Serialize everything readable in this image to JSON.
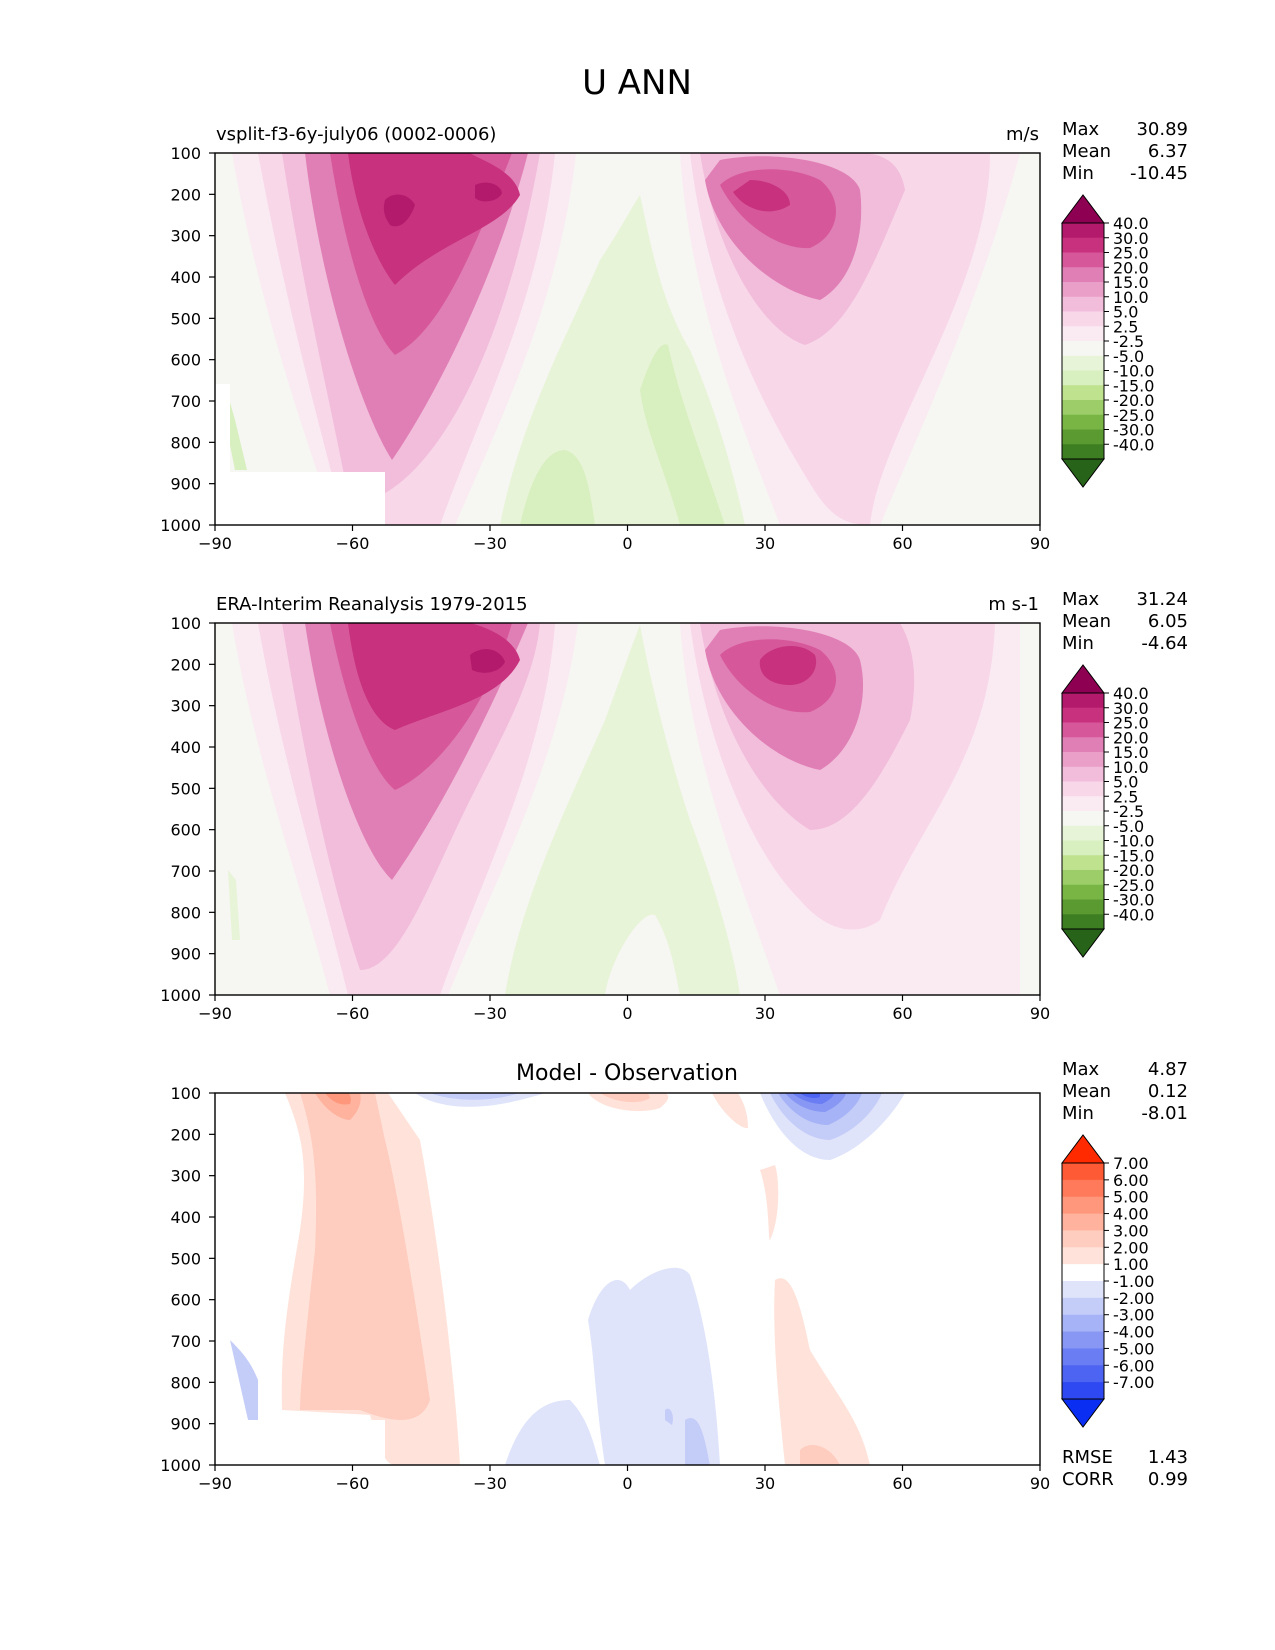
{
  "figure": {
    "title": "U ANN"
  },
  "chart_data": [
    {
      "type": "heatmap",
      "title": "vsplit-f3-6y-july06 (0002-0006)",
      "units": "m/s",
      "stats": {
        "max_label": "Max",
        "max": "30.89",
        "mean_label": "Mean",
        "mean": "6.37",
        "min_label": "Min",
        "min": "-10.45"
      },
      "x_ticks": [
        "−90",
        "−60",
        "−30",
        "0",
        "30",
        "60",
        "90"
      ],
      "xlim": [
        -90,
        90
      ],
      "y_ticks": [
        "100",
        "200",
        "300",
        "400",
        "500",
        "600",
        "700",
        "800",
        "900",
        "1000"
      ],
      "ylim": [
        1000,
        100
      ],
      "colorbar_levels": [
        "40.0",
        "30.0",
        "25.0",
        "20.0",
        "15.0",
        "10.0",
        "5.0",
        "2.5",
        "-2.5",
        "-5.0",
        "-10.0",
        "-15.0",
        "-20.0",
        "-25.0",
        "-30.0",
        "-40.0"
      ],
      "colorbar_colors": [
        "#8e0152",
        "#b41a6c",
        "#c8317d",
        "#d6589b",
        "#e07fb5",
        "#ea9fc8",
        "#f2bddb",
        "#f8d7e9",
        "#faeaf2",
        "#f6f6f2",
        "#e8f4d8",
        "#d8efc0",
        "#bfe28e",
        "#9ccd68",
        "#79b545",
        "#5b9a31",
        "#3e7e23",
        "#276419"
      ]
    },
    {
      "type": "heatmap",
      "title": "ERA-Interim Reanalysis 1979-2015",
      "units": "m s-1",
      "stats": {
        "max_label": "Max",
        "max": "31.24",
        "mean_label": "Mean",
        "mean": "6.05",
        "min_label": "Min",
        "min": "-4.64"
      },
      "x_ticks": [
        "−90",
        "−60",
        "−30",
        "0",
        "30",
        "60",
        "90"
      ],
      "xlim": [
        -90,
        90
      ],
      "y_ticks": [
        "100",
        "200",
        "300",
        "400",
        "500",
        "600",
        "700",
        "800",
        "900",
        "1000"
      ],
      "ylim": [
        1000,
        100
      ],
      "colorbar_levels": [
        "40.0",
        "30.0",
        "25.0",
        "20.0",
        "15.0",
        "10.0",
        "5.0",
        "2.5",
        "-2.5",
        "-5.0",
        "-10.0",
        "-15.0",
        "-20.0",
        "-25.0",
        "-30.0",
        "-40.0"
      ],
      "colorbar_colors": [
        "#8e0152",
        "#b41a6c",
        "#c8317d",
        "#d6589b",
        "#e07fb5",
        "#ea9fc8",
        "#f2bddb",
        "#f8d7e9",
        "#faeaf2",
        "#f6f6f2",
        "#e8f4d8",
        "#d8efc0",
        "#bfe28e",
        "#9ccd68",
        "#79b545",
        "#5b9a31",
        "#3e7e23",
        "#276419"
      ]
    },
    {
      "type": "heatmap",
      "title": "Model - Observation",
      "units": "",
      "stats": {
        "max_label": "Max",
        "max": "4.87",
        "mean_label": "Mean",
        "mean": "0.12",
        "min_label": "Min",
        "min": "-8.01",
        "rmse_label": "RMSE",
        "rmse": "1.43",
        "corr_label": "CORR",
        "corr": "0.99"
      },
      "x_ticks": [
        "−90",
        "−60",
        "−30",
        "0",
        "30",
        "60",
        "90"
      ],
      "xlim": [
        -90,
        90
      ],
      "y_ticks": [
        "100",
        "200",
        "300",
        "400",
        "500",
        "600",
        "700",
        "800",
        "900",
        "1000"
      ],
      "ylim": [
        1000,
        100
      ],
      "colorbar_levels": [
        "7.00",
        "6.00",
        "5.00",
        "4.00",
        "3.00",
        "2.00",
        "1.00",
        "-1.00",
        "-2.00",
        "-3.00",
        "-4.00",
        "-5.00",
        "-6.00",
        "-7.00"
      ],
      "colorbar_colors": [
        "#ff2a00",
        "#ff5a36",
        "#ff7a5a",
        "#ff977c",
        "#ffb39e",
        "#ffcdbf",
        "#ffe3da",
        "#ffffff",
        "#dfe4fb",
        "#c4ccf8",
        "#a6b3f6",
        "#8797f3",
        "#6b7df3",
        "#4d63f2",
        "#2e49f1",
        "#0a2ef2"
      ]
    }
  ]
}
